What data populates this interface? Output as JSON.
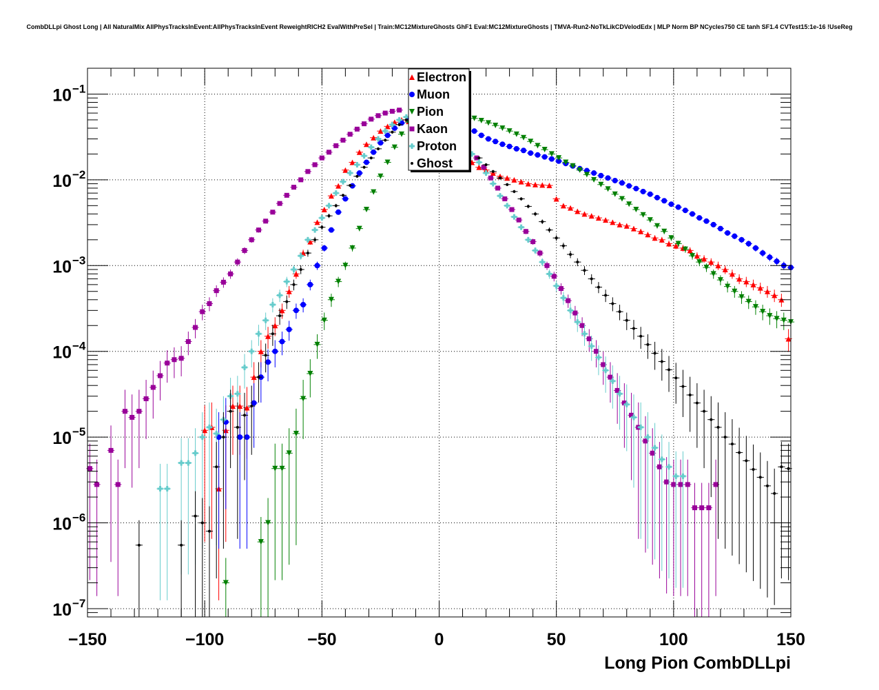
{
  "chart_data": {
    "type": "scatter",
    "title": "CombDLLpi Ghost Long | All NaturalMix AllPhysTracksInEvent:AllPhysTracksInEvent ReweightRICH2 EvalWithPreSel | Train:MC12MixtureGhosts GhF1 Eval:MC12MixtureGhosts | TMVA-Run2-NoTkLikCDVelodEdx | MLP Norm BP NCycles750 CE tanh SF1.4 CVTest15:1e-16 !UseReg",
    "xlabel": "Long Pion CombDLLpi",
    "ylabel": "",
    "xlim": [
      -150,
      150
    ],
    "ylim": [
      8e-08,
      0.2
    ],
    "y_scale": "log",
    "grid": true,
    "legend_position": "top-center",
    "x_ticks": [
      -150,
      -100,
      -50,
      0,
      50,
      100,
      150
    ],
    "x_tick_labels": [
      "−150",
      "−100",
      "−50",
      "0",
      "50",
      "100",
      "150"
    ],
    "y_ticks": [
      {
        "value": 1e-07,
        "base": "10",
        "exp": "−7"
      },
      {
        "value": 1e-06,
        "base": "10",
        "exp": "−6"
      },
      {
        "value": 1e-05,
        "base": "10",
        "exp": "−5"
      },
      {
        "value": 0.0001,
        "base": "10",
        "exp": "−4"
      },
      {
        "value": 0.001,
        "base": "10",
        "exp": "−3"
      },
      {
        "value": 0.01,
        "base": "10",
        "exp": "−2"
      },
      {
        "value": 0.1,
        "base": "10",
        "exp": "−1"
      }
    ],
    "series": [
      {
        "name": "Electron",
        "color": "#ff0000",
        "marker": "triangle-up",
        "x": [
          -100,
          -97,
          -94,
          -91,
          -88,
          -85,
          -82,
          -79,
          -76,
          -73,
          -70,
          -67,
          -64,
          -61,
          -58,
          -55,
          -52,
          -49,
          -46,
          -43,
          -40,
          -37,
          -34,
          -31,
          -28,
          -25,
          -22,
          -19,
          -16,
          -13,
          14,
          17,
          20,
          23,
          26,
          29,
          32,
          35,
          38,
          41,
          44,
          47,
          50,
          53,
          56,
          59,
          62,
          65,
          68,
          71,
          74,
          77,
          80,
          83,
          86,
          89,
          92,
          95,
          98,
          101,
          104,
          107,
          110,
          113,
          116,
          119,
          122,
          125,
          128,
          131,
          134,
          137,
          140,
          143,
          146,
          149
        ],
        "y": [
          1.2e-05,
          1.3e-05,
          2.5e-06,
          1.2e-05,
          2.3e-05,
          2.3e-05,
          2.2e-05,
          5e-05,
          0.0001,
          0.00015,
          0.0002,
          0.0003,
          0.0005,
          0.0008,
          0.0014,
          0.0019,
          0.0032,
          0.0045,
          0.0065,
          0.0085,
          0.013,
          0.016,
          0.021,
          0.026,
          0.031,
          0.037,
          0.042,
          0.047,
          0.05,
          0.048,
          0.016,
          0.014,
          0.013,
          0.012,
          0.011,
          0.0105,
          0.01,
          0.0095,
          0.009,
          0.0088,
          0.0087,
          0.0086,
          0.006,
          0.005,
          0.0047,
          0.0043,
          0.004,
          0.0038,
          0.0036,
          0.0034,
          0.0032,
          0.003,
          0.0029,
          0.0027,
          0.0025,
          0.0023,
          0.0021,
          0.002,
          0.0018,
          0.0017,
          0.0016,
          0.0015,
          0.0013,
          0.0012,
          0.0011,
          0.001,
          0.0009,
          0.0008,
          0.0007,
          0.00065,
          0.0006,
          0.00055,
          0.0005,
          0.00045,
          0.0004,
          0.00014
        ]
      },
      {
        "name": "Muon",
        "color": "#0000ff",
        "marker": "circle",
        "x": [
          -94,
          -91,
          -85,
          -82,
          -79,
          -76,
          -73,
          -70,
          -67,
          -64,
          -61,
          -58,
          -55,
          -52,
          -49,
          -46,
          -43,
          -40,
          -37,
          -34,
          -31,
          -28,
          -25,
          -22,
          -19,
          -16,
          -13,
          15,
          18,
          21,
          24,
          27,
          30,
          33,
          36,
          39,
          42,
          45,
          48,
          51,
          54,
          57,
          60,
          63,
          66,
          69,
          72,
          75,
          78,
          81,
          84,
          87,
          90,
          93,
          96,
          99,
          102,
          105,
          108,
          111,
          114,
          117,
          120,
          123,
          126,
          129,
          132,
          135,
          138,
          141,
          144,
          147,
          150
        ],
        "y": [
          1e-05,
          1.5e-05,
          1e-05,
          1e-05,
          2.5e-05,
          5e-05,
          7.5e-05,
          0.0001,
          0.00013,
          0.00018,
          0.0003,
          0.00035,
          0.0006,
          0.001,
          0.0016,
          0.0026,
          0.0042,
          0.006,
          0.0085,
          0.012,
          0.016,
          0.021,
          0.027,
          0.033,
          0.04,
          0.046,
          0.05,
          0.037,
          0.033,
          0.03,
          0.028,
          0.026,
          0.0245,
          0.023,
          0.022,
          0.0205,
          0.0195,
          0.0185,
          0.0175,
          0.0165,
          0.0155,
          0.0145,
          0.0135,
          0.0128,
          0.012,
          0.0112,
          0.0105,
          0.0098,
          0.0092,
          0.0085,
          0.0079,
          0.0073,
          0.0068,
          0.0062,
          0.0057,
          0.0052,
          0.0048,
          0.0044,
          0.004,
          0.0036,
          0.0033,
          0.003,
          0.0027,
          0.0024,
          0.0022,
          0.002,
          0.0018,
          0.0016,
          0.0014,
          0.00125,
          0.00112,
          0.001,
          0.00095
        ]
      },
      {
        "name": "Pion",
        "color": "#008000",
        "marker": "triangle-down",
        "x": [
          -91,
          -76,
          -73,
          -70,
          -67,
          -64,
          -61,
          -58,
          -55,
          -52,
          -49,
          -46,
          -43,
          -40,
          -37,
          -34,
          -31,
          -28,
          -25,
          -22,
          -19,
          -16,
          -13,
          15,
          18,
          21,
          24,
          27,
          30,
          33,
          36,
          39,
          42,
          45,
          48,
          51,
          54,
          57,
          60,
          63,
          66,
          69,
          72,
          75,
          78,
          81,
          84,
          87,
          90,
          93,
          96,
          99,
          102,
          105,
          108,
          111,
          114,
          117,
          120,
          123,
          126,
          129,
          132,
          135,
          138,
          141,
          144,
          147,
          150
        ],
        "y": [
          2e-07,
          6e-07,
          1e-06,
          4.3e-06,
          4.3e-06,
          6.5e-06,
          1.1e-05,
          2.8e-05,
          5.5e-05,
          0.00012,
          0.00023,
          0.0004,
          0.00065,
          0.001,
          0.0016,
          0.0027,
          0.0045,
          0.0072,
          0.011,
          0.016,
          0.024,
          0.034,
          0.047,
          0.052,
          0.049,
          0.046,
          0.043,
          0.04,
          0.037,
          0.034,
          0.031,
          0.028,
          0.025,
          0.0225,
          0.02,
          0.018,
          0.016,
          0.0145,
          0.013,
          0.0115,
          0.01,
          0.0088,
          0.0078,
          0.0068,
          0.006,
          0.0052,
          0.0045,
          0.0039,
          0.0034,
          0.0029,
          0.0025,
          0.0021,
          0.0018,
          0.00155,
          0.0013,
          0.0011,
          0.00095,
          0.0008,
          0.00068,
          0.00057,
          0.0005,
          0.00043,
          0.00038,
          0.00033,
          0.00029,
          0.00026,
          0.00024,
          0.00023,
          0.00022
        ]
      },
      {
        "name": "Kaon",
        "color": "#990099",
        "marker": "square",
        "x": [
          -149,
          -146,
          -140,
          -137,
          -134,
          -131,
          -128,
          -125,
          -122,
          -119,
          -116,
          -113,
          -110,
          -107,
          -104,
          -101,
          -98,
          -95,
          -92,
          -89,
          -86,
          -83,
          -80,
          -77,
          -74,
          -71,
          -68,
          -65,
          -62,
          -59,
          -56,
          -53,
          -50,
          -47,
          -44,
          -41,
          -38,
          -35,
          -32,
          -29,
          -26,
          -23,
          -20,
          -17,
          16,
          19,
          22,
          25,
          28,
          31,
          34,
          37,
          40,
          43,
          46,
          49,
          52,
          55,
          58,
          61,
          64,
          67,
          70,
          73,
          76,
          79,
          82,
          85,
          88,
          91,
          94,
          97,
          100,
          103,
          106,
          109,
          112,
          115,
          118
        ],
        "y": [
          4.3e-06,
          2.8e-06,
          7e-06,
          2.8e-06,
          2e-05,
          1.7e-05,
          2e-05,
          2.8e-05,
          3.8e-05,
          5.2e-05,
          7.3e-05,
          8e-05,
          8.3e-05,
          0.00013,
          0.00019,
          0.00029,
          0.00036,
          0.00051,
          0.00064,
          0.0008,
          0.0011,
          0.0015,
          0.002,
          0.0026,
          0.0033,
          0.0042,
          0.0053,
          0.0066,
          0.0082,
          0.01,
          0.0125,
          0.015,
          0.018,
          0.021,
          0.025,
          0.029,
          0.034,
          0.039,
          0.045,
          0.051,
          0.056,
          0.06,
          0.063,
          0.065,
          0.018,
          0.014,
          0.0105,
          0.008,
          0.006,
          0.0045,
          0.0034,
          0.0025,
          0.0019,
          0.0014,
          0.001,
          0.00075,
          0.00054,
          0.00039,
          0.00028,
          0.0002,
          0.00014,
          0.0001,
          7e-05,
          5e-05,
          3.5e-05,
          2.5e-05,
          1.8e-05,
          1.3e-05,
          9e-06,
          6.5e-06,
          4.5e-06,
          3e-06,
          2.8e-06,
          2.8e-06,
          2.8e-06,
          1.5e-06,
          1.5e-06,
          1.5e-06,
          2.8e-06
        ]
      },
      {
        "name": "Proton",
        "color": "#66cccc",
        "marker": "cross",
        "x": [
          -119,
          -116,
          -110,
          -107,
          -104,
          -101,
          -98,
          -95,
          -92,
          -89,
          -86,
          -83,
          -80,
          -77,
          -74,
          -71,
          -68,
          -65,
          -62,
          -59,
          -56,
          -53,
          -50,
          -47,
          -44,
          -41,
          -38,
          -35,
          -32,
          -29,
          -26,
          -23,
          -20,
          -17,
          -14,
          14,
          17,
          20,
          23,
          26,
          29,
          32,
          35,
          38,
          41,
          44,
          47,
          50,
          53,
          56,
          59,
          62,
          65,
          68,
          71,
          74,
          77,
          80,
          83,
          86,
          89,
          92,
          95,
          98,
          101,
          104
        ],
        "y": [
          2.5e-06,
          2.5e-06,
          5e-06,
          5e-06,
          6.5e-06,
          1e-05,
          1.3e-05,
          1.1e-05,
          1.6e-05,
          3e-05,
          3.2e-05,
          6.5e-05,
          0.0001,
          0.00016,
          0.00023,
          0.00035,
          0.00045,
          0.00065,
          0.0009,
          0.0013,
          0.002,
          0.0026,
          0.0036,
          0.005,
          0.007,
          0.0095,
          0.012,
          0.015,
          0.019,
          0.024,
          0.03,
          0.037,
          0.044,
          0.05,
          0.054,
          0.02,
          0.016,
          0.012,
          0.009,
          0.0065,
          0.005,
          0.0037,
          0.0028,
          0.002,
          0.0015,
          0.0011,
          0.0008,
          0.00058,
          0.00042,
          0.0003,
          0.00022,
          0.00016,
          0.000115,
          8.5e-05,
          6e-05,
          4.5e-05,
          3.2e-05,
          2.4e-05,
          1.7e-05,
          1.3e-05,
          1e-05,
          7.5e-06,
          5.5e-06,
          4.5e-06,
          3.5e-06,
          3.5e-06
        ]
      },
      {
        "name": "Ghost",
        "color": "#000000",
        "marker": "small-dot",
        "x": [
          -128,
          -110,
          -104,
          -101,
          -98,
          -95,
          -92,
          -89,
          -86,
          -83,
          -80,
          -77,
          -74,
          -71,
          -68,
          -65,
          -62,
          -59,
          -56,
          -53,
          -50,
          -47,
          -44,
          -41,
          -38,
          -35,
          -32,
          -29,
          -26,
          -23,
          -20,
          -17,
          -14,
          17,
          20,
          23,
          26,
          29,
          32,
          35,
          38,
          41,
          44,
          47,
          50,
          53,
          56,
          59,
          62,
          65,
          68,
          71,
          74,
          77,
          80,
          83,
          86,
          89,
          92,
          95,
          98,
          101,
          104,
          107,
          110,
          113,
          116,
          119,
          122,
          125,
          128,
          131,
          134,
          137,
          140,
          143,
          146,
          149
        ],
        "y": [
          5.5e-07,
          5.5e-07,
          1.2e-06,
          1e-06,
          8e-07,
          4.5e-06,
          1e-05,
          2e-05,
          1.3e-05,
          1.8e-05,
          2.3e-05,
          5e-05,
          9e-05,
          0.00016,
          0.00026,
          0.00038,
          0.0006,
          0.0009,
          0.0014,
          0.002,
          0.0028,
          0.0038,
          0.005,
          0.0066,
          0.0086,
          0.011,
          0.014,
          0.018,
          0.023,
          0.029,
          0.036,
          0.044,
          0.05,
          0.018,
          0.015,
          0.0125,
          0.0105,
          0.0088,
          0.0073,
          0.006,
          0.0049,
          0.004,
          0.00325,
          0.0026,
          0.0021,
          0.0017,
          0.00135,
          0.0011,
          0.00088,
          0.0007,
          0.00056,
          0.00045,
          0.00036,
          0.00029,
          0.00023,
          0.000185,
          0.00015,
          0.00012,
          9.5e-05,
          7.6e-05,
          6.1e-05,
          4.9e-05,
          3.9e-05,
          3.1e-05,
          2.5e-05,
          2e-05,
          1.6e-05,
          1.3e-05,
          1e-05,
          8.3e-06,
          6.6e-06,
          5.3e-06,
          4.2e-06,
          3.4e-06,
          2.7e-06,
          2.2e-06,
          4.5e-06,
          4.3e-06
        ]
      }
    ]
  }
}
